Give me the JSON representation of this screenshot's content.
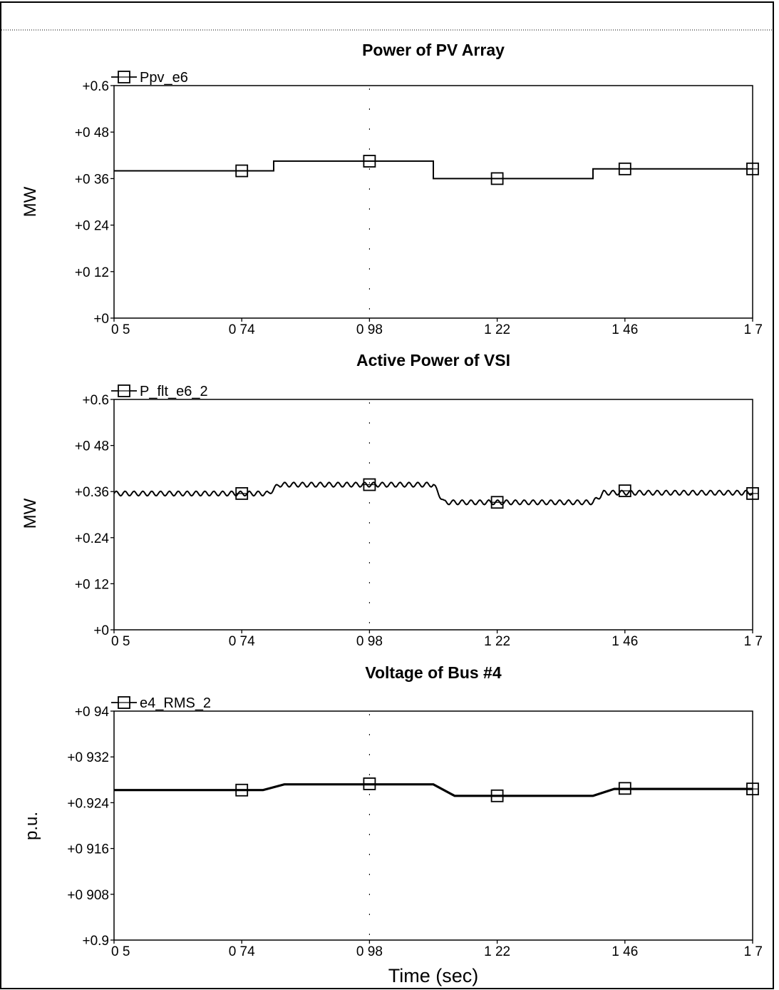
{
  "chart_data": [
    {
      "type": "line",
      "title": "Power of PV Array",
      "ylabel": "MW",
      "xlabel": "",
      "xlim": [
        0.5,
        1.7
      ],
      "ylim": [
        0,
        0.6
      ],
      "x_ticks": [
        "0 5",
        "0 74",
        "0 98",
        "1 22",
        "1 46",
        "1 7"
      ],
      "y_ticks": [
        "+0",
        "+0 12",
        "+0 24",
        "+0 36",
        "+0 48",
        "+0.6"
      ],
      "legend": "top-left",
      "series": [
        {
          "name": "Ppv_e6",
          "x": [
            0.5,
            0.8,
            0.8,
            1.1,
            1.1,
            1.4,
            1.4,
            1.7
          ],
          "y": [
            0.38,
            0.38,
            0.405,
            0.405,
            0.36,
            0.36,
            0.385,
            0.385
          ],
          "markers_x": [
            0.74,
            0.98,
            1.22,
            1.46,
            1.7
          ],
          "markers_y": [
            0.38,
            0.405,
            0.36,
            0.385,
            0.385
          ],
          "ripple": 0
        }
      ]
    },
    {
      "type": "line",
      "title": "Active Power of VSI",
      "ylabel": "MW",
      "xlabel": "",
      "xlim": [
        0.5,
        1.7
      ],
      "ylim": [
        0,
        0.6
      ],
      "x_ticks": [
        "0 5",
        "0 74",
        "0 98",
        "1 22",
        "1 46",
        "1 7"
      ],
      "y_ticks": [
        "+0",
        "+0 12",
        "+0.24",
        "+0.36",
        "+0 48",
        "+0.6"
      ],
      "legend": "top-left",
      "series": [
        {
          "name": "P_flt_e6_2",
          "x": [
            0.5,
            0.79,
            0.81,
            1.1,
            1.12,
            1.4,
            1.42,
            1.7
          ],
          "y": [
            0.355,
            0.355,
            0.378,
            0.378,
            0.332,
            0.332,
            0.357,
            0.357
          ],
          "markers_x": [
            0.74,
            0.98,
            1.22,
            1.46,
            1.7
          ],
          "markers_y": [
            0.355,
            0.378,
            0.332,
            0.362,
            0.355
          ],
          "ripple": 0.006
        }
      ]
    },
    {
      "type": "line",
      "title": "Voltage of Bus #4",
      "ylabel": "p.u.",
      "xlabel": "Time (sec)",
      "xlim": [
        0.5,
        1.7
      ],
      "ylim": [
        0.9,
        0.94
      ],
      "x_ticks": [
        "0 5",
        "0 74",
        "0 98",
        "1 22",
        "1 46",
        "1 7"
      ],
      "y_ticks": [
        "+0.9",
        "+0 908",
        "+0 916",
        "+0.924",
        "+0 932",
        "+0 94"
      ],
      "legend": "top-left",
      "series": [
        {
          "name": "e4_RMS_2",
          "x": [
            0.5,
            0.78,
            0.82,
            1.1,
            1.14,
            1.4,
            1.44,
            1.7
          ],
          "y": [
            0.9262,
            0.9262,
            0.9272,
            0.9272,
            0.9252,
            0.9252,
            0.9264,
            0.9264
          ],
          "markers_x": [
            0.74,
            0.98,
            1.22,
            1.46,
            1.7
          ],
          "markers_y": [
            0.9262,
            0.9273,
            0.9252,
            0.9265,
            0.9264
          ],
          "ripple": 0
        }
      ]
    }
  ]
}
